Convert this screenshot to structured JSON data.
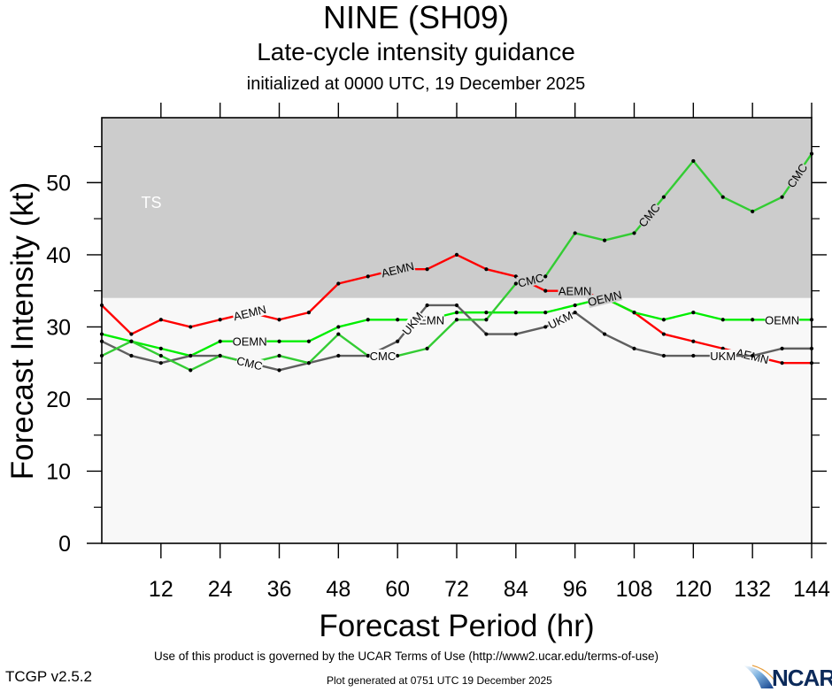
{
  "header": {
    "title": "NINE (SH09)",
    "subtitle": "Late-cycle intensity guidance",
    "init_line": "initialized at 0000 UTC, 19 December 2025"
  },
  "footer": {
    "terms": "Use of this product is governed by the UCAR Terms of Use (http://www2.ucar.edu/terms-of-use)",
    "version": "TCGP v2.5.2",
    "generated": "Plot generated at 0751 UTC   19 December 2025",
    "logo_text": "NCAR"
  },
  "chart_data": {
    "type": "line",
    "title": "NINE (SH09)",
    "subtitle": "Late-cycle intensity guidance",
    "xlabel": "Forecast Period (hr)",
    "ylabel": "Forecast Intensity (kt)",
    "xlim": [
      0,
      144
    ],
    "ylim": [
      0,
      59
    ],
    "x_ticks": [
      12,
      24,
      36,
      48,
      60,
      72,
      84,
      96,
      108,
      120,
      132,
      144
    ],
    "y_ticks": [
      0,
      10,
      20,
      30,
      40,
      50
    ],
    "y_minor_ticks": [
      5,
      15,
      25,
      35,
      45,
      55
    ],
    "grid": false,
    "bands": [
      {
        "label": "TS",
        "from": 34,
        "to": 59,
        "color": "#cccccc"
      },
      {
        "label": "",
        "from": 0,
        "to": 34,
        "color": "#f8f8f8"
      }
    ],
    "x": [
      0,
      6,
      12,
      18,
      24,
      30,
      36,
      42,
      48,
      54,
      60,
      66,
      72,
      78,
      84,
      90,
      96,
      102,
      108,
      114,
      120,
      126,
      132,
      138,
      144
    ],
    "series": [
      {
        "name": "AEMN",
        "color": "#ff0000",
        "values": [
          33,
          29,
          31,
          30,
          31,
          32,
          31,
          32,
          36,
          37,
          38,
          38,
          40,
          38,
          37,
          35,
          35,
          34,
          32,
          29,
          28,
          27,
          26,
          25,
          25
        ],
        "labels_at": [
          30,
          60,
          96,
          132
        ]
      },
      {
        "name": "OEMN",
        "color": "#00ee00",
        "values": [
          29,
          28,
          27,
          26,
          28,
          28,
          28,
          28,
          30,
          31,
          31,
          31,
          32,
          32,
          32,
          32,
          33,
          34,
          32,
          31,
          32,
          31,
          31,
          31,
          31
        ],
        "labels_at": [
          30,
          66,
          102,
          138
        ],
        "label_text": "OEMN"
      },
      {
        "name": "UKM",
        "color": "#5f5f5f",
        "values": [
          28,
          26,
          25,
          26,
          26,
          25,
          24,
          25,
          26,
          26,
          28,
          33,
          33,
          29,
          29,
          30,
          32,
          29,
          27,
          26,
          26,
          26,
          26,
          27,
          27
        ],
        "labels_at": [
          30,
          63,
          93,
          126
        ]
      },
      {
        "name": "CMC",
        "color": "#33cc33",
        "values": [
          26,
          28,
          26,
          24,
          26,
          25,
          26,
          25,
          29,
          26,
          26,
          27,
          31,
          31,
          36,
          37,
          43,
          42,
          43,
          48,
          53,
          48,
          46,
          48,
          54
        ],
        "labels_at": [
          30,
          57,
          87,
          111,
          141
        ]
      }
    ],
    "annotations": [
      {
        "text": "TS",
        "x": 8,
        "y": 46.5,
        "color": "#ffffff"
      }
    ]
  }
}
